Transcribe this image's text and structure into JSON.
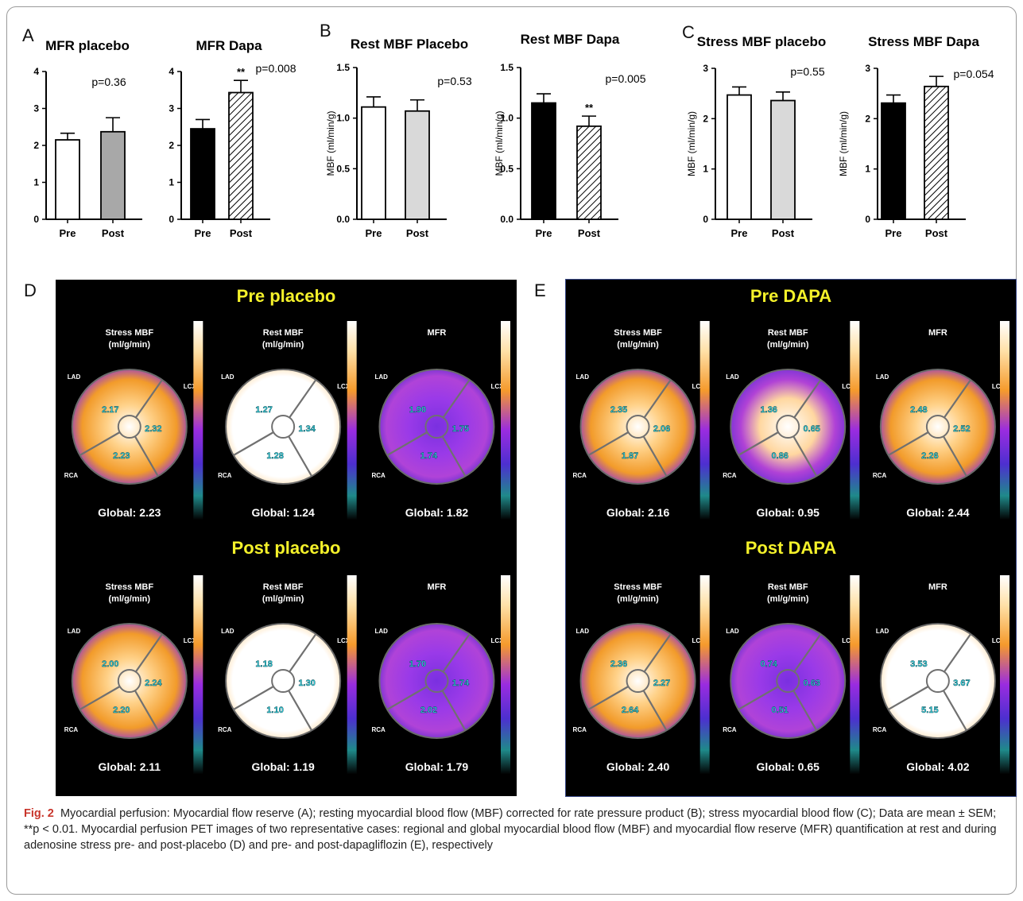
{
  "panels": {
    "A": "A",
    "B": "B",
    "C": "C",
    "D": "D",
    "E": "E"
  },
  "chart_data": [
    {
      "type": "bar",
      "title": "MFR placebo",
      "ylabel": "",
      "categories": [
        "Pre",
        "Post"
      ],
      "values": [
        2.15,
        2.37
      ],
      "errors": [
        0.18,
        0.38
      ],
      "ylim": [
        0,
        4
      ],
      "yticks": [
        "0",
        "1",
        "2",
        "3",
        "4"
      ],
      "pvalue": "p=0.36",
      "sig": [
        "",
        ""
      ],
      "colors": [
        "#ffffff",
        "#a8a8a8"
      ],
      "hatch": [
        false,
        false
      ]
    },
    {
      "type": "bar",
      "title": "MFR Dapa",
      "ylabel": "",
      "categories": [
        "Pre",
        "Post"
      ],
      "values": [
        2.45,
        3.43
      ],
      "errors": [
        0.25,
        0.33
      ],
      "ylim": [
        0,
        4
      ],
      "yticks": [
        "0",
        "1",
        "2",
        "3",
        "4"
      ],
      "pvalue": "p=0.008",
      "sig": [
        "",
        "**"
      ],
      "colors": [
        "#000000",
        "#ffffff"
      ],
      "hatch": [
        false,
        true
      ]
    },
    {
      "type": "bar",
      "title": "Rest MBF Placebo",
      "ylabel": "MBF (ml/min/g)",
      "categories": [
        "Pre",
        "Post"
      ],
      "values": [
        1.11,
        1.07
      ],
      "errors": [
        0.1,
        0.11
      ],
      "ylim": [
        0,
        1.5
      ],
      "yticks": [
        "0.0",
        "0.5",
        "1.0",
        "1.5"
      ],
      "pvalue": "p=0.53",
      "sig": [
        "",
        ""
      ],
      "colors": [
        "#ffffff",
        "#d9d9d9"
      ],
      "hatch": [
        false,
        false
      ]
    },
    {
      "type": "bar",
      "title": "Rest MBF Dapa",
      "ylabel": "MBF (ml/min/g)",
      "categories": [
        "Pre",
        "Post"
      ],
      "values": [
        1.15,
        0.92
      ],
      "errors": [
        0.09,
        0.1
      ],
      "ylim": [
        0,
        1.5
      ],
      "yticks": [
        "0.0",
        "0.5",
        "1.0",
        "1.5"
      ],
      "pvalue": "p=0.005",
      "sig": [
        "",
        "**"
      ],
      "colors": [
        "#000000",
        "#ffffff"
      ],
      "hatch": [
        false,
        true
      ]
    },
    {
      "type": "bar",
      "title": "Stress MBF placebo",
      "ylabel": "MBF (ml/min/g)",
      "categories": [
        "Pre",
        "Post"
      ],
      "values": [
        2.47,
        2.36
      ],
      "errors": [
        0.16,
        0.17
      ],
      "ylim": [
        0,
        3
      ],
      "yticks": [
        "0",
        "1",
        "2",
        "3"
      ],
      "pvalue": "p=0.55",
      "sig": [
        "",
        ""
      ],
      "colors": [
        "#ffffff",
        "#d9d9d9"
      ],
      "hatch": [
        false,
        false
      ]
    },
    {
      "type": "bar",
      "title": "Stress MBF Dapa",
      "ylabel": "MBF (ml/min/g)",
      "categories": [
        "Pre",
        "Post"
      ],
      "values": [
        2.31,
        2.64
      ],
      "errors": [
        0.16,
        0.2
      ],
      "ylim": [
        0,
        3
      ],
      "yticks": [
        "0",
        "1",
        "2",
        "3"
      ],
      "pvalue": "p=0.054",
      "sig": [
        "",
        ""
      ],
      "colors": [
        "#000000",
        "#ffffff"
      ],
      "hatch": [
        false,
        true
      ]
    }
  ],
  "pet": {
    "D": {
      "top_title": "Pre placebo",
      "bottom_title": "Post placebo",
      "top": [
        {
          "title": [
            "Stress MBF",
            "(ml/g/min)"
          ],
          "values": [
            "2.17",
            "2.32",
            "2.23"
          ],
          "global": "Global: 2.23",
          "mode": "stress"
        },
        {
          "title": [
            "Rest MBF",
            "(ml/g/min)"
          ],
          "values": [
            "1.27",
            "1.34",
            "1.28"
          ],
          "global": "Global: 1.24",
          "mode": "white"
        },
        {
          "title": [
            "MFR",
            ""
          ],
          "values": [
            "1.90",
            "1.75",
            "1.74"
          ],
          "global": "Global: 1.82",
          "mode": "purple"
        }
      ],
      "bottom": [
        {
          "title": [
            "Stress MBF",
            "(ml/g/min)"
          ],
          "values": [
            "2.00",
            "2.24",
            "2.20"
          ],
          "global": "Global: 2.11",
          "mode": "stress"
        },
        {
          "title": [
            "Rest MBF",
            "(ml/g/min)"
          ],
          "values": [
            "1.18",
            "1.30",
            "1.10"
          ],
          "global": "Global: 1.19",
          "mode": "white"
        },
        {
          "title": [
            "MFR",
            ""
          ],
          "values": [
            "1.70",
            "1.74",
            "2.02"
          ],
          "global": "Global: 1.79",
          "mode": "purple"
        }
      ]
    },
    "E": {
      "top_title": "Pre DAPA",
      "bottom_title": "Post DAPA",
      "top": [
        {
          "title": [
            "Stress MBF",
            "(ml/g/min)"
          ],
          "values": [
            "2.35",
            "2.06",
            "1.87"
          ],
          "global": "Global: 2.16",
          "mode": "stress"
        },
        {
          "title": [
            "Rest MBF",
            "(ml/g/min)"
          ],
          "values": [
            "1.36",
            "0.65",
            "0.86"
          ],
          "global": "Global: 0.95",
          "mode": "mixed"
        },
        {
          "title": [
            "MFR",
            ""
          ],
          "values": [
            "2.48",
            "2.52",
            "2.26"
          ],
          "global": "Global: 2.44",
          "mode": "stress"
        }
      ],
      "bottom": [
        {
          "title": [
            "Stress MBF",
            "(ml/g/min)"
          ],
          "values": [
            "2.36",
            "2.27",
            "2.64"
          ],
          "global": "Global: 2.40",
          "mode": "stress"
        },
        {
          "title": [
            "Rest MBF",
            "(ml/g/min)"
          ],
          "values": [
            "0.74",
            "0.63",
            "0.51"
          ],
          "global": "Global: 0.65",
          "mode": "purple"
        },
        {
          "title": [
            "MFR",
            ""
          ],
          "values": [
            "3.53",
            "3.67",
            "5.15"
          ],
          "global": "Global: 4.02",
          "mode": "white"
        }
      ]
    },
    "territories": {
      "lad": "LAD",
      "lcx": "LCX",
      "rca": "RCA"
    }
  },
  "caption": {
    "fig": "Fig. 2",
    "text": "Myocardial perfusion: Myocardial flow reserve (A); resting myocardial blood flow (MBF) corrected for rate pressure product (B); stress myocardial blood flow (C); Data are mean ± SEM; **p < 0.01. Myocardial perfusion PET images of two representative cases: regional and global myocardial blood flow (MBF) and myocardial flow reserve (MFR) quantification at rest and during adenosine stress pre- and post-placebo (D) and pre- and post-dapagliflozin (E), respectively"
  }
}
